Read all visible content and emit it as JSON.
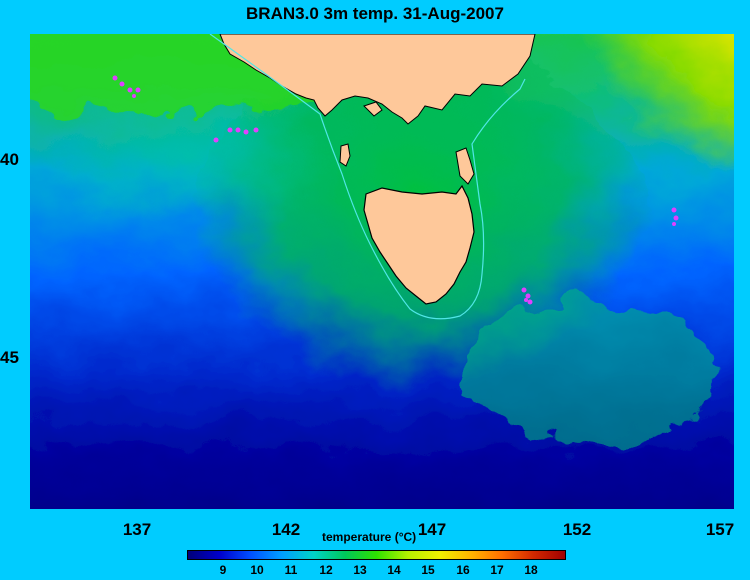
{
  "title": "BRAN3.0 3m temp. 31-Aug-2007",
  "x_ticks": [
    "137",
    "142",
    "147",
    "152",
    "157"
  ],
  "y_ticks": [
    "40",
    "45"
  ],
  "colorbar": {
    "title": "temperature (°C)",
    "ticks": [
      "9",
      "10",
      "11",
      "12",
      "13",
      "14",
      "15",
      "16",
      "17",
      "18"
    ],
    "colors": [
      "#00007a",
      "#0000cc",
      "#0050ff",
      "#00a0ff",
      "#00d2c8",
      "#00c85a",
      "#2ee000",
      "#b4f000",
      "#f0f000",
      "#ffb400",
      "#ff6e00",
      "#d22800",
      "#a00000"
    ]
  },
  "colors": {
    "background": "#00ccff",
    "land": "#fec89a",
    "coastline": "#000000",
    "isobath": "#50e6e6",
    "drifter_markers": "#e040ff"
  }
}
